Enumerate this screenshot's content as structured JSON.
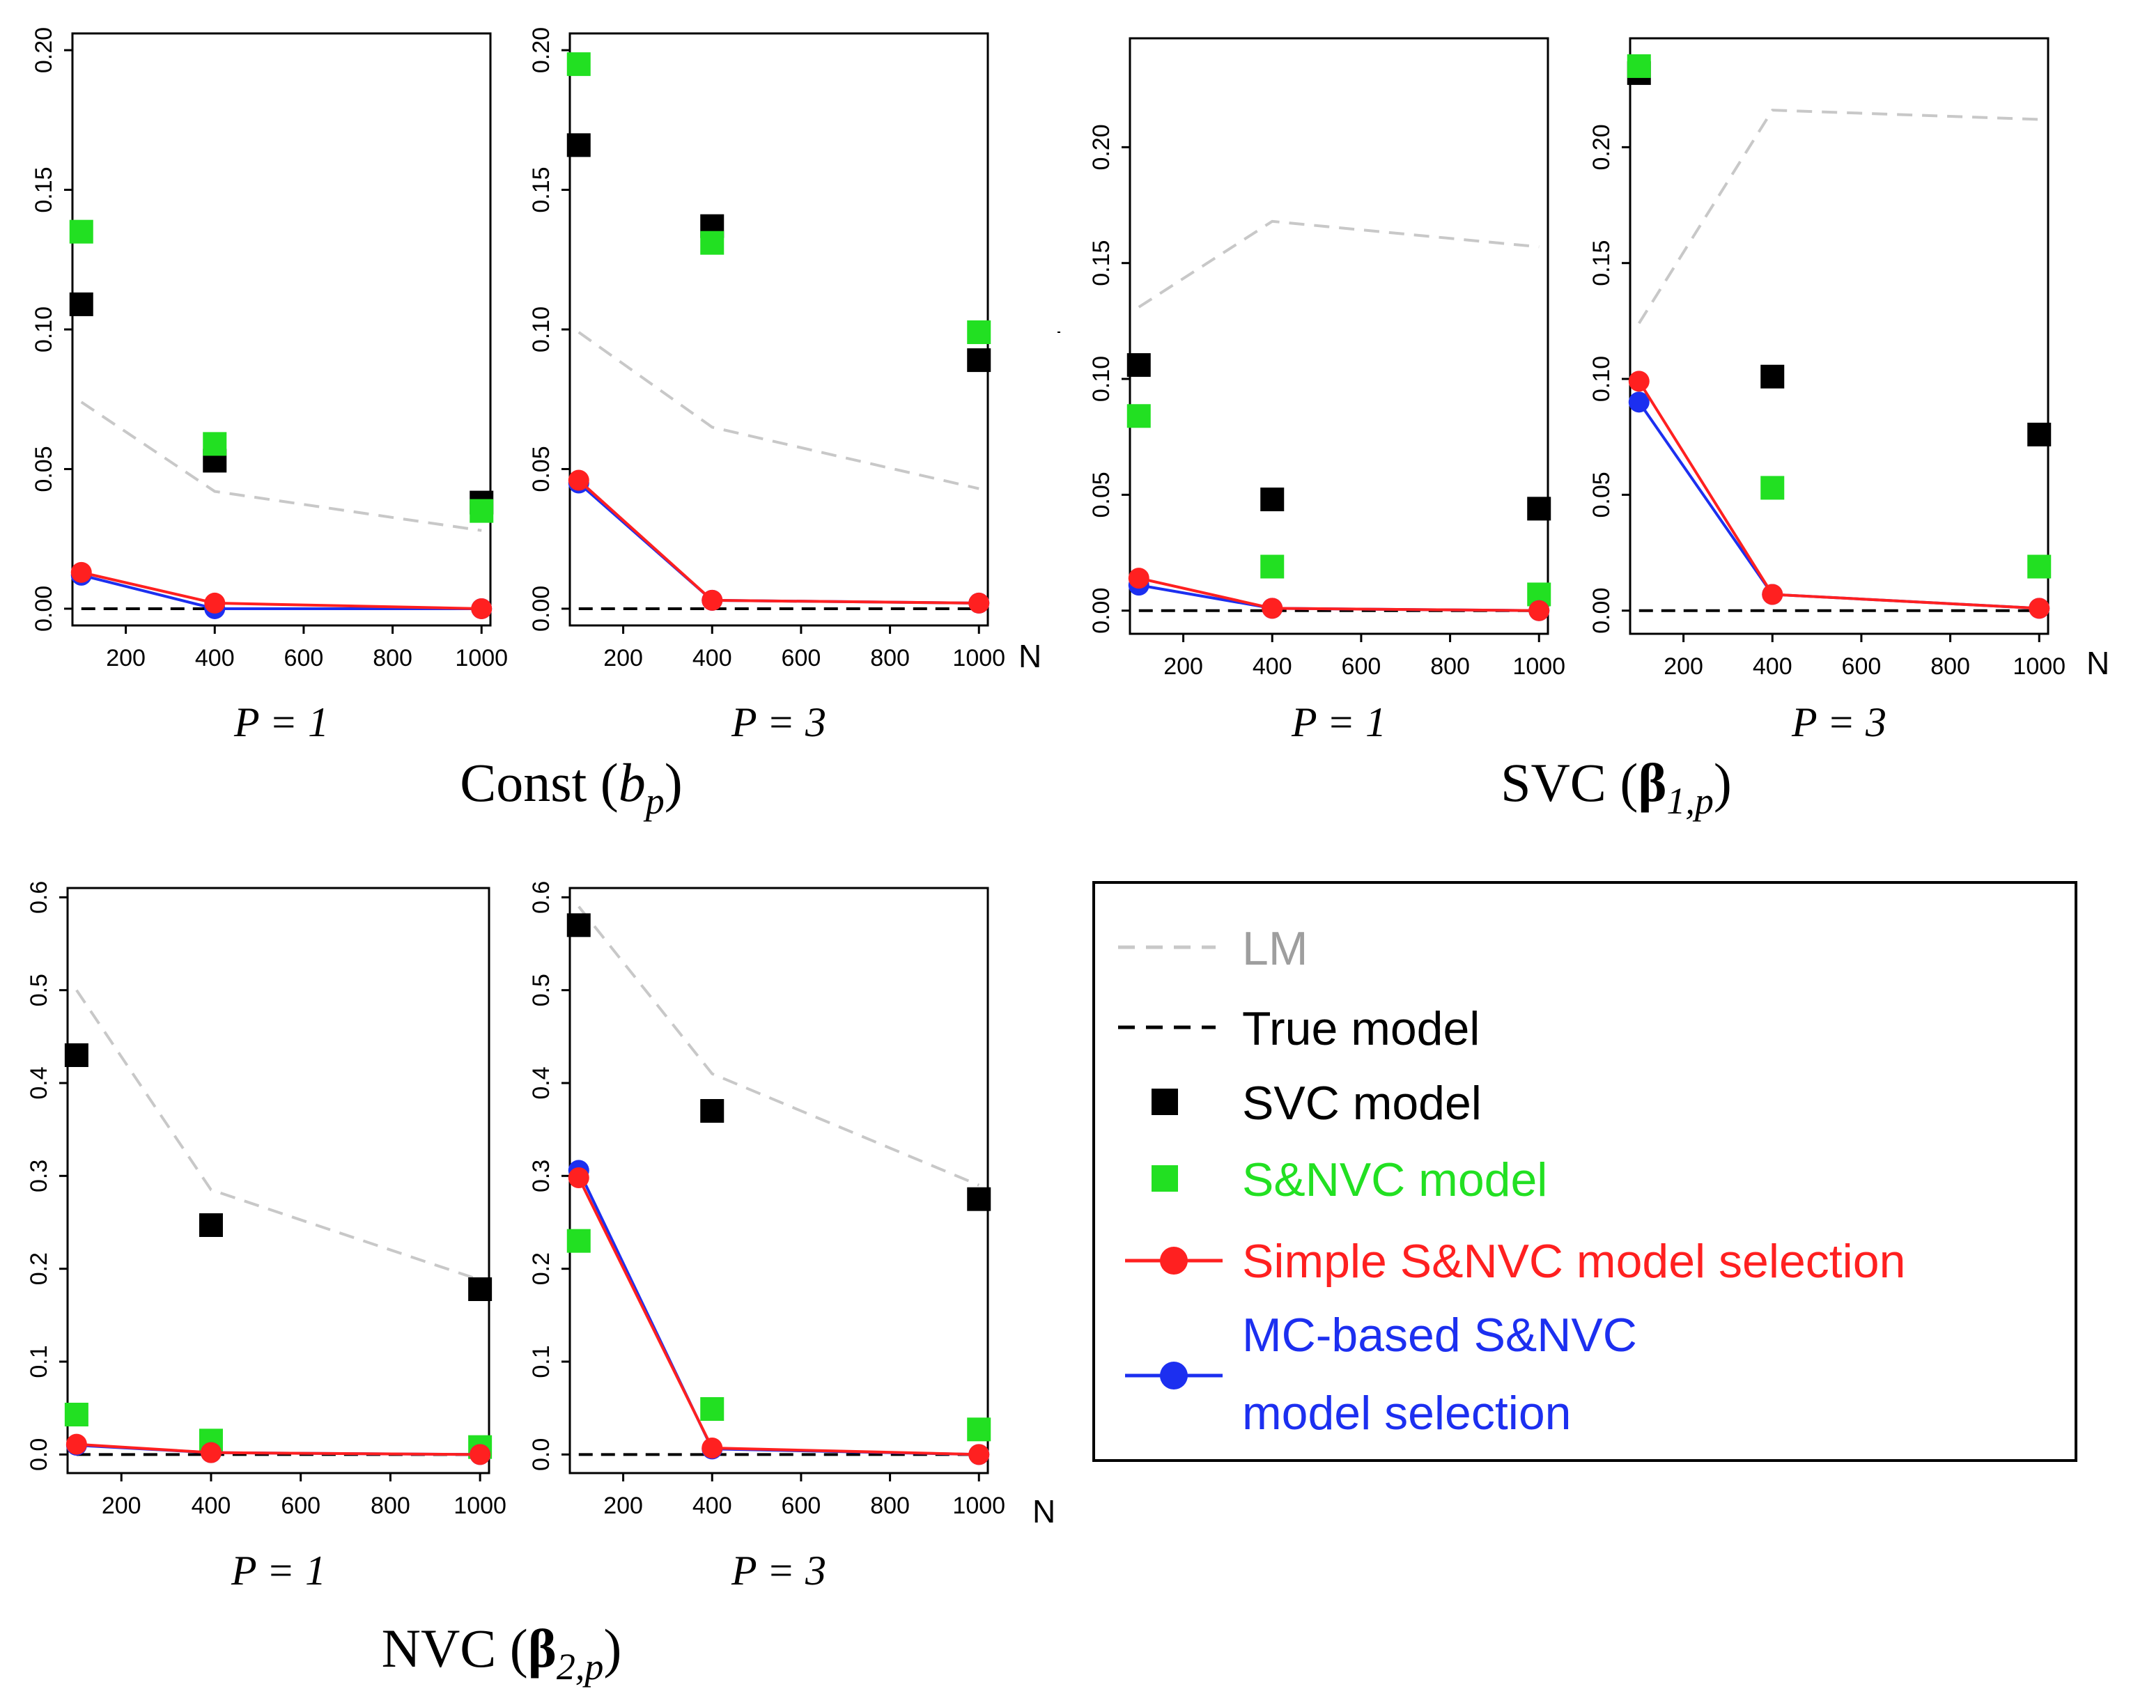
{
  "colors": {
    "lm": "#c8c8c8",
    "true_model": "#000000",
    "svc": "#000000",
    "snvc": "#22e022",
    "simple": "#ff2020",
    "mc": "#1c2ff0",
    "legend_lm_text": "#9e9e9e"
  },
  "n_axis_symbol": "N",
  "chart_data": [
    {
      "type": "scatter",
      "group": "Const",
      "panel": "P = 1",
      "x_label": "P = 1",
      "xlim": [
        80,
        1020
      ],
      "ylim": [
        -0.006,
        0.206
      ],
      "x_ticks": [
        200,
        400,
        600,
        800,
        1000
      ],
      "y_ticks": [
        0.0,
        0.05,
        0.1,
        0.15,
        0.2
      ],
      "x_tick_labels": [
        "200",
        "400",
        "600",
        "800",
        "1000"
      ],
      "y_tick_labels": [
        "0.00",
        "0.05",
        "0.10",
        "0.15",
        "0.20"
      ],
      "x": [
        100,
        400,
        1000
      ],
      "series": [
        {
          "name": "LM",
          "values": [
            0.074,
            0.042,
            0.028
          ]
        },
        {
          "name": "True model",
          "values": [
            0.0,
            0.0,
            0.0
          ]
        },
        {
          "name": "SVC model",
          "values": [
            0.109,
            0.053,
            0.038
          ]
        },
        {
          "name": "S&NVC model",
          "values": [
            0.135,
            0.059,
            0.035
          ]
        },
        {
          "name": "Simple S&NVC model selection",
          "values": [
            0.013,
            0.002,
            0.0
          ]
        },
        {
          "name": "MC-based S&NVC model selection",
          "values": [
            0.012,
            0.0,
            0.0
          ]
        }
      ]
    },
    {
      "type": "scatter",
      "group": "Const",
      "panel": "P = 3",
      "x_label": "P = 3",
      "xlim": [
        80,
        1020
      ],
      "ylim": [
        -0.006,
        0.206
      ],
      "x_ticks": [
        200,
        400,
        600,
        800,
        1000
      ],
      "y_ticks": [
        0.0,
        0.05,
        0.1,
        0.15,
        0.2
      ],
      "x_tick_labels": [
        "200",
        "400",
        "600",
        "800",
        "1000"
      ],
      "y_tick_labels": [
        "0.00",
        "0.05",
        "0.10",
        "0.15",
        "0.20"
      ],
      "x": [
        100,
        400,
        1000
      ],
      "series": [
        {
          "name": "LM",
          "values": [
            0.099,
            0.065,
            0.043
          ]
        },
        {
          "name": "True model",
          "values": [
            0.0,
            0.0,
            0.0
          ]
        },
        {
          "name": "SVC model",
          "values": [
            0.166,
            0.137,
            0.089
          ]
        },
        {
          "name": "S&NVC model",
          "values": [
            0.195,
            0.131,
            0.099
          ]
        },
        {
          "name": "Simple S&NVC model selection",
          "values": [
            0.046,
            0.003,
            0.002
          ]
        },
        {
          "name": "MC-based S&NVC model selection",
          "values": [
            0.045,
            0.003,
            0.002
          ]
        }
      ]
    },
    {
      "type": "scatter",
      "group": "SVC",
      "panel": "P = 1",
      "x_label": "P = 1",
      "xlim": [
        80,
        1020
      ],
      "ylim": [
        -0.01,
        0.247
      ],
      "x_ticks": [
        200,
        400,
        600,
        800,
        1000
      ],
      "y_ticks": [
        0.0,
        0.05,
        0.1,
        0.15,
        0.2
      ],
      "x_tick_labels": [
        "200",
        "400",
        "600",
        "800",
        "1000"
      ],
      "y_tick_labels": [
        "0.00",
        "0.05",
        "0.10",
        "0.15",
        "0.20"
      ],
      "x": [
        100,
        400,
        1000
      ],
      "series": [
        {
          "name": "LM",
          "values": [
            0.131,
            0.168,
            0.157
          ]
        },
        {
          "name": "True model",
          "values": [
            0.0,
            0.0,
            0.0
          ]
        },
        {
          "name": "SVC model",
          "values": [
            0.106,
            0.048,
            0.044
          ]
        },
        {
          "name": "S&NVC model",
          "values": [
            0.084,
            0.019,
            0.007
          ]
        },
        {
          "name": "Simple S&NVC model selection",
          "values": [
            0.014,
            0.001,
            0.0
          ]
        },
        {
          "name": "MC-based S&NVC model selection",
          "values": [
            0.011,
            0.001,
            0.0
          ]
        }
      ]
    },
    {
      "type": "scatter",
      "group": "SVC",
      "panel": "P = 3",
      "x_label": "P = 3",
      "xlim": [
        80,
        1020
      ],
      "ylim": [
        -0.01,
        0.247
      ],
      "x_ticks": [
        200,
        400,
        600,
        800,
        1000
      ],
      "y_ticks": [
        0.0,
        0.05,
        0.1,
        0.15,
        0.2
      ],
      "x_tick_labels": [
        "200",
        "400",
        "600",
        "800",
        "1000"
      ],
      "y_tick_labels": [
        "0.00",
        "0.05",
        "0.10",
        "0.15",
        "0.20"
      ],
      "x": [
        100,
        400,
        1000
      ],
      "series": [
        {
          "name": "LM",
          "values": [
            0.124,
            0.216,
            0.212
          ]
        },
        {
          "name": "True model",
          "values": [
            0.0,
            0.0,
            0.0
          ]
        },
        {
          "name": "SVC model",
          "values": [
            0.232,
            0.101,
            0.076
          ]
        },
        {
          "name": "S&NVC model",
          "values": [
            0.235,
            0.053,
            0.019
          ]
        },
        {
          "name": "Simple S&NVC model selection",
          "values": [
            0.099,
            0.007,
            0.001
          ]
        },
        {
          "name": "MC-based S&NVC model selection",
          "values": [
            0.09,
            0.007,
            0.001
          ]
        }
      ]
    },
    {
      "type": "scatter",
      "group": "NVC",
      "panel": "P = 1",
      "x_label": "P = 1",
      "xlim": [
        80,
        1020
      ],
      "ylim": [
        -0.02,
        0.61
      ],
      "x_ticks": [
        200,
        400,
        600,
        800,
        1000
      ],
      "y_ticks": [
        0.0,
        0.1,
        0.2,
        0.3,
        0.4,
        0.5,
        0.6
      ],
      "x_tick_labels": [
        "200",
        "400",
        "600",
        "800",
        "1000"
      ],
      "y_tick_labels": [
        "0.0",
        "0.1",
        "0.2",
        "0.3",
        "0.4",
        "0.5",
        "0.6"
      ],
      "x": [
        100,
        400,
        1000
      ],
      "series": [
        {
          "name": "LM",
          "values": [
            0.5,
            0.285,
            0.188
          ]
        },
        {
          "name": "True model",
          "values": [
            0.0,
            0.0,
            0.0
          ]
        },
        {
          "name": "SVC model",
          "values": [
            0.43,
            0.247,
            0.178
          ]
        },
        {
          "name": "S&NVC model",
          "values": [
            0.043,
            0.015,
            0.008
          ]
        },
        {
          "name": "Simple S&NVC model selection",
          "values": [
            0.011,
            0.002,
            0.0
          ]
        },
        {
          "name": "MC-based S&NVC model selection",
          "values": [
            0.01,
            0.002,
            0.0
          ]
        }
      ]
    },
    {
      "type": "scatter",
      "group": "NVC",
      "panel": "P = 3",
      "x_label": "P = 3",
      "xlim": [
        80,
        1020
      ],
      "ylim": [
        -0.02,
        0.61
      ],
      "x_ticks": [
        200,
        400,
        600,
        800,
        1000
      ],
      "y_ticks": [
        0.0,
        0.1,
        0.2,
        0.3,
        0.4,
        0.5,
        0.6
      ],
      "x_tick_labels": [
        "200",
        "400",
        "600",
        "800",
        "1000"
      ],
      "y_tick_labels": [
        "0.0",
        "0.1",
        "0.2",
        "0.3",
        "0.4",
        "0.5",
        "0.6"
      ],
      "x": [
        100,
        400,
        1000
      ],
      "series": [
        {
          "name": "LM",
          "values": [
            0.59,
            0.41,
            0.29
          ]
        },
        {
          "name": "True model",
          "values": [
            0.0,
            0.0,
            0.0
          ]
        },
        {
          "name": "SVC model",
          "values": [
            0.57,
            0.37,
            0.275
          ]
        },
        {
          "name": "S&NVC model",
          "values": [
            0.23,
            0.049,
            0.027
          ]
        },
        {
          "name": "Simple S&NVC model selection",
          "values": [
            0.298,
            0.007,
            0.0
          ]
        },
        {
          "name": "MC-based S&NVC model selection",
          "values": [
            0.306,
            0.006,
            0.0
          ]
        }
      ]
    }
  ],
  "group_titles": {
    "const": {
      "main": "Const (",
      "sym": "b",
      "sub": "p",
      "close": ")"
    },
    "svc": {
      "main": "SVC (",
      "sym": "β",
      "sub": "1,p",
      "close": ")"
    },
    "nvc": {
      "main": "NVC (",
      "sym": "β",
      "sub": "2,p",
      "close": ")"
    }
  },
  "legend": {
    "items": [
      {
        "key": "lm",
        "label": "LM"
      },
      {
        "key": "true",
        "label": "True model"
      },
      {
        "key": "svc",
        "label": "SVC model"
      },
      {
        "key": "snvc",
        "label": "S&NVC model"
      },
      {
        "key": "simple",
        "label": "Simple S&NVC model selection"
      },
      {
        "key": "mc",
        "label_line1": "MC-based S&NVC",
        "label_line2": "model selection"
      }
    ]
  }
}
